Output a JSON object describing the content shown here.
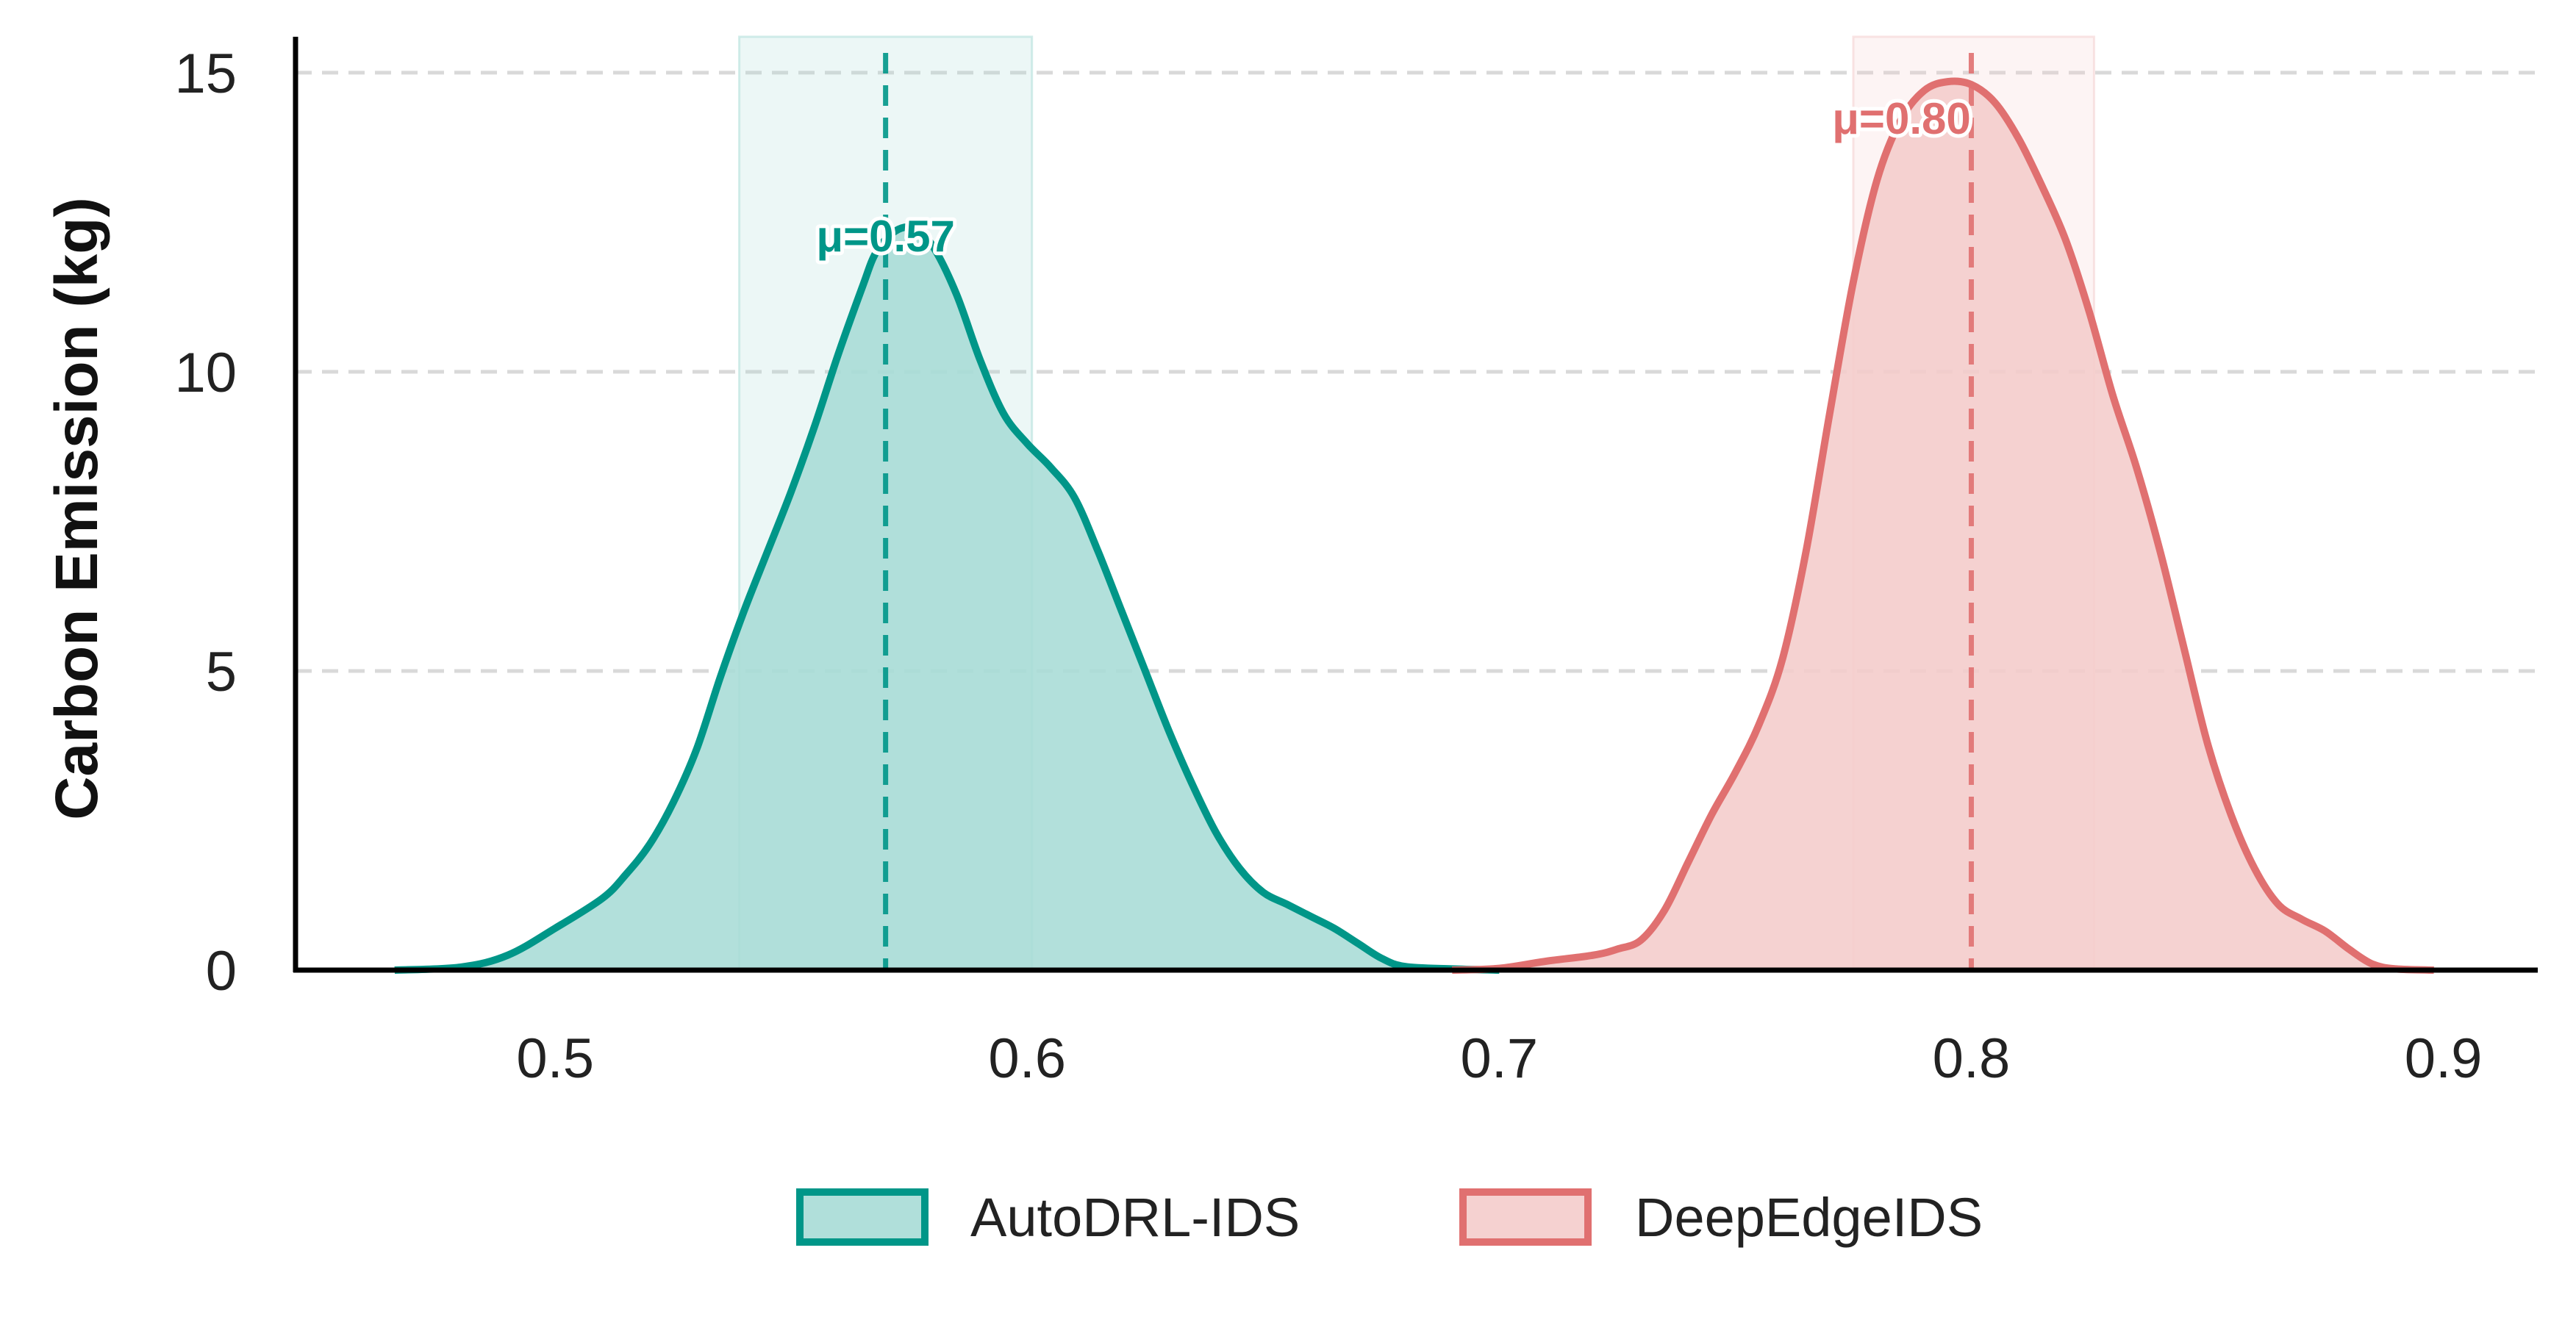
{
  "chart_data": {
    "type": "area",
    "ylabel": "Carbon Emission (kg)",
    "xlabel": "",
    "xlim": [
      0.445,
      0.92
    ],
    "ylim": [
      0,
      15.6
    ],
    "x_ticks": [
      0.5,
      0.6,
      0.7,
      0.8,
      0.9
    ],
    "x_tick_labels": [
      "0.5",
      "0.6",
      "0.7",
      "0.8",
      "0.9"
    ],
    "y_ticks": [
      0,
      5,
      10,
      15
    ],
    "y_tick_labels": [
      "0",
      "5",
      "10",
      "15"
    ],
    "grid": "horizontal dashed",
    "legend_position": "bottom-center",
    "series": [
      {
        "name": "AutoDRL-IDS",
        "color": "#009688",
        "fill": "#a7dcd6",
        "mean": 0.57,
        "mean_label": "μ=0.57",
        "band": [
          0.539,
          0.601
        ],
        "points": [
          [
            0.466,
            0.0
          ],
          [
            0.48,
            0.05
          ],
          [
            0.49,
            0.25
          ],
          [
            0.5,
            0.7
          ],
          [
            0.51,
            1.2
          ],
          [
            0.515,
            1.6
          ],
          [
            0.52,
            2.1
          ],
          [
            0.525,
            2.8
          ],
          [
            0.53,
            3.7
          ],
          [
            0.535,
            4.9
          ],
          [
            0.54,
            6.0
          ],
          [
            0.545,
            7.0
          ],
          [
            0.55,
            8.0
          ],
          [
            0.555,
            9.1
          ],
          [
            0.56,
            10.3
          ],
          [
            0.565,
            11.4
          ],
          [
            0.568,
            12.0
          ],
          [
            0.572,
            12.35
          ],
          [
            0.576,
            12.4
          ],
          [
            0.58,
            12.1
          ],
          [
            0.585,
            11.3
          ],
          [
            0.59,
            10.2
          ],
          [
            0.595,
            9.3
          ],
          [
            0.6,
            8.8
          ],
          [
            0.605,
            8.4
          ],
          [
            0.61,
            7.9
          ],
          [
            0.615,
            7.0
          ],
          [
            0.62,
            6.0
          ],
          [
            0.625,
            5.0
          ],
          [
            0.63,
            4.0
          ],
          [
            0.635,
            3.1
          ],
          [
            0.64,
            2.3
          ],
          [
            0.645,
            1.7
          ],
          [
            0.65,
            1.3
          ],
          [
            0.655,
            1.1
          ],
          [
            0.66,
            0.9
          ],
          [
            0.665,
            0.7
          ],
          [
            0.67,
            0.45
          ],
          [
            0.675,
            0.2
          ],
          [
            0.68,
            0.06
          ],
          [
            0.69,
            0.02
          ],
          [
            0.7,
            0.0
          ]
        ]
      },
      {
        "name": "DeepEdgeIDS",
        "color": "#e07070",
        "fill": "#f4cccb",
        "mean": 0.8,
        "mean_label": "μ=0.80",
        "band": [
          0.775,
          0.826
        ],
        "points": [
          [
            0.69,
            0.0
          ],
          [
            0.7,
            0.03
          ],
          [
            0.71,
            0.15
          ],
          [
            0.72,
            0.25
          ],
          [
            0.725,
            0.35
          ],
          [
            0.73,
            0.5
          ],
          [
            0.735,
            1.0
          ],
          [
            0.74,
            1.8
          ],
          [
            0.745,
            2.6
          ],
          [
            0.75,
            3.3
          ],
          [
            0.755,
            4.1
          ],
          [
            0.76,
            5.2
          ],
          [
            0.765,
            7.0
          ],
          [
            0.77,
            9.3
          ],
          [
            0.775,
            11.5
          ],
          [
            0.78,
            13.2
          ],
          [
            0.785,
            14.2
          ],
          [
            0.79,
            14.7
          ],
          [
            0.795,
            14.85
          ],
          [
            0.8,
            14.8
          ],
          [
            0.805,
            14.5
          ],
          [
            0.81,
            13.9
          ],
          [
            0.815,
            13.1
          ],
          [
            0.82,
            12.2
          ],
          [
            0.825,
            11.0
          ],
          [
            0.83,
            9.6
          ],
          [
            0.835,
            8.4
          ],
          [
            0.84,
            7.0
          ],
          [
            0.845,
            5.4
          ],
          [
            0.85,
            3.8
          ],
          [
            0.855,
            2.6
          ],
          [
            0.86,
            1.7
          ],
          [
            0.865,
            1.1
          ],
          [
            0.87,
            0.85
          ],
          [
            0.875,
            0.65
          ],
          [
            0.88,
            0.35
          ],
          [
            0.885,
            0.1
          ],
          [
            0.89,
            0.02
          ],
          [
            0.898,
            0.0
          ]
        ]
      }
    ]
  }
}
